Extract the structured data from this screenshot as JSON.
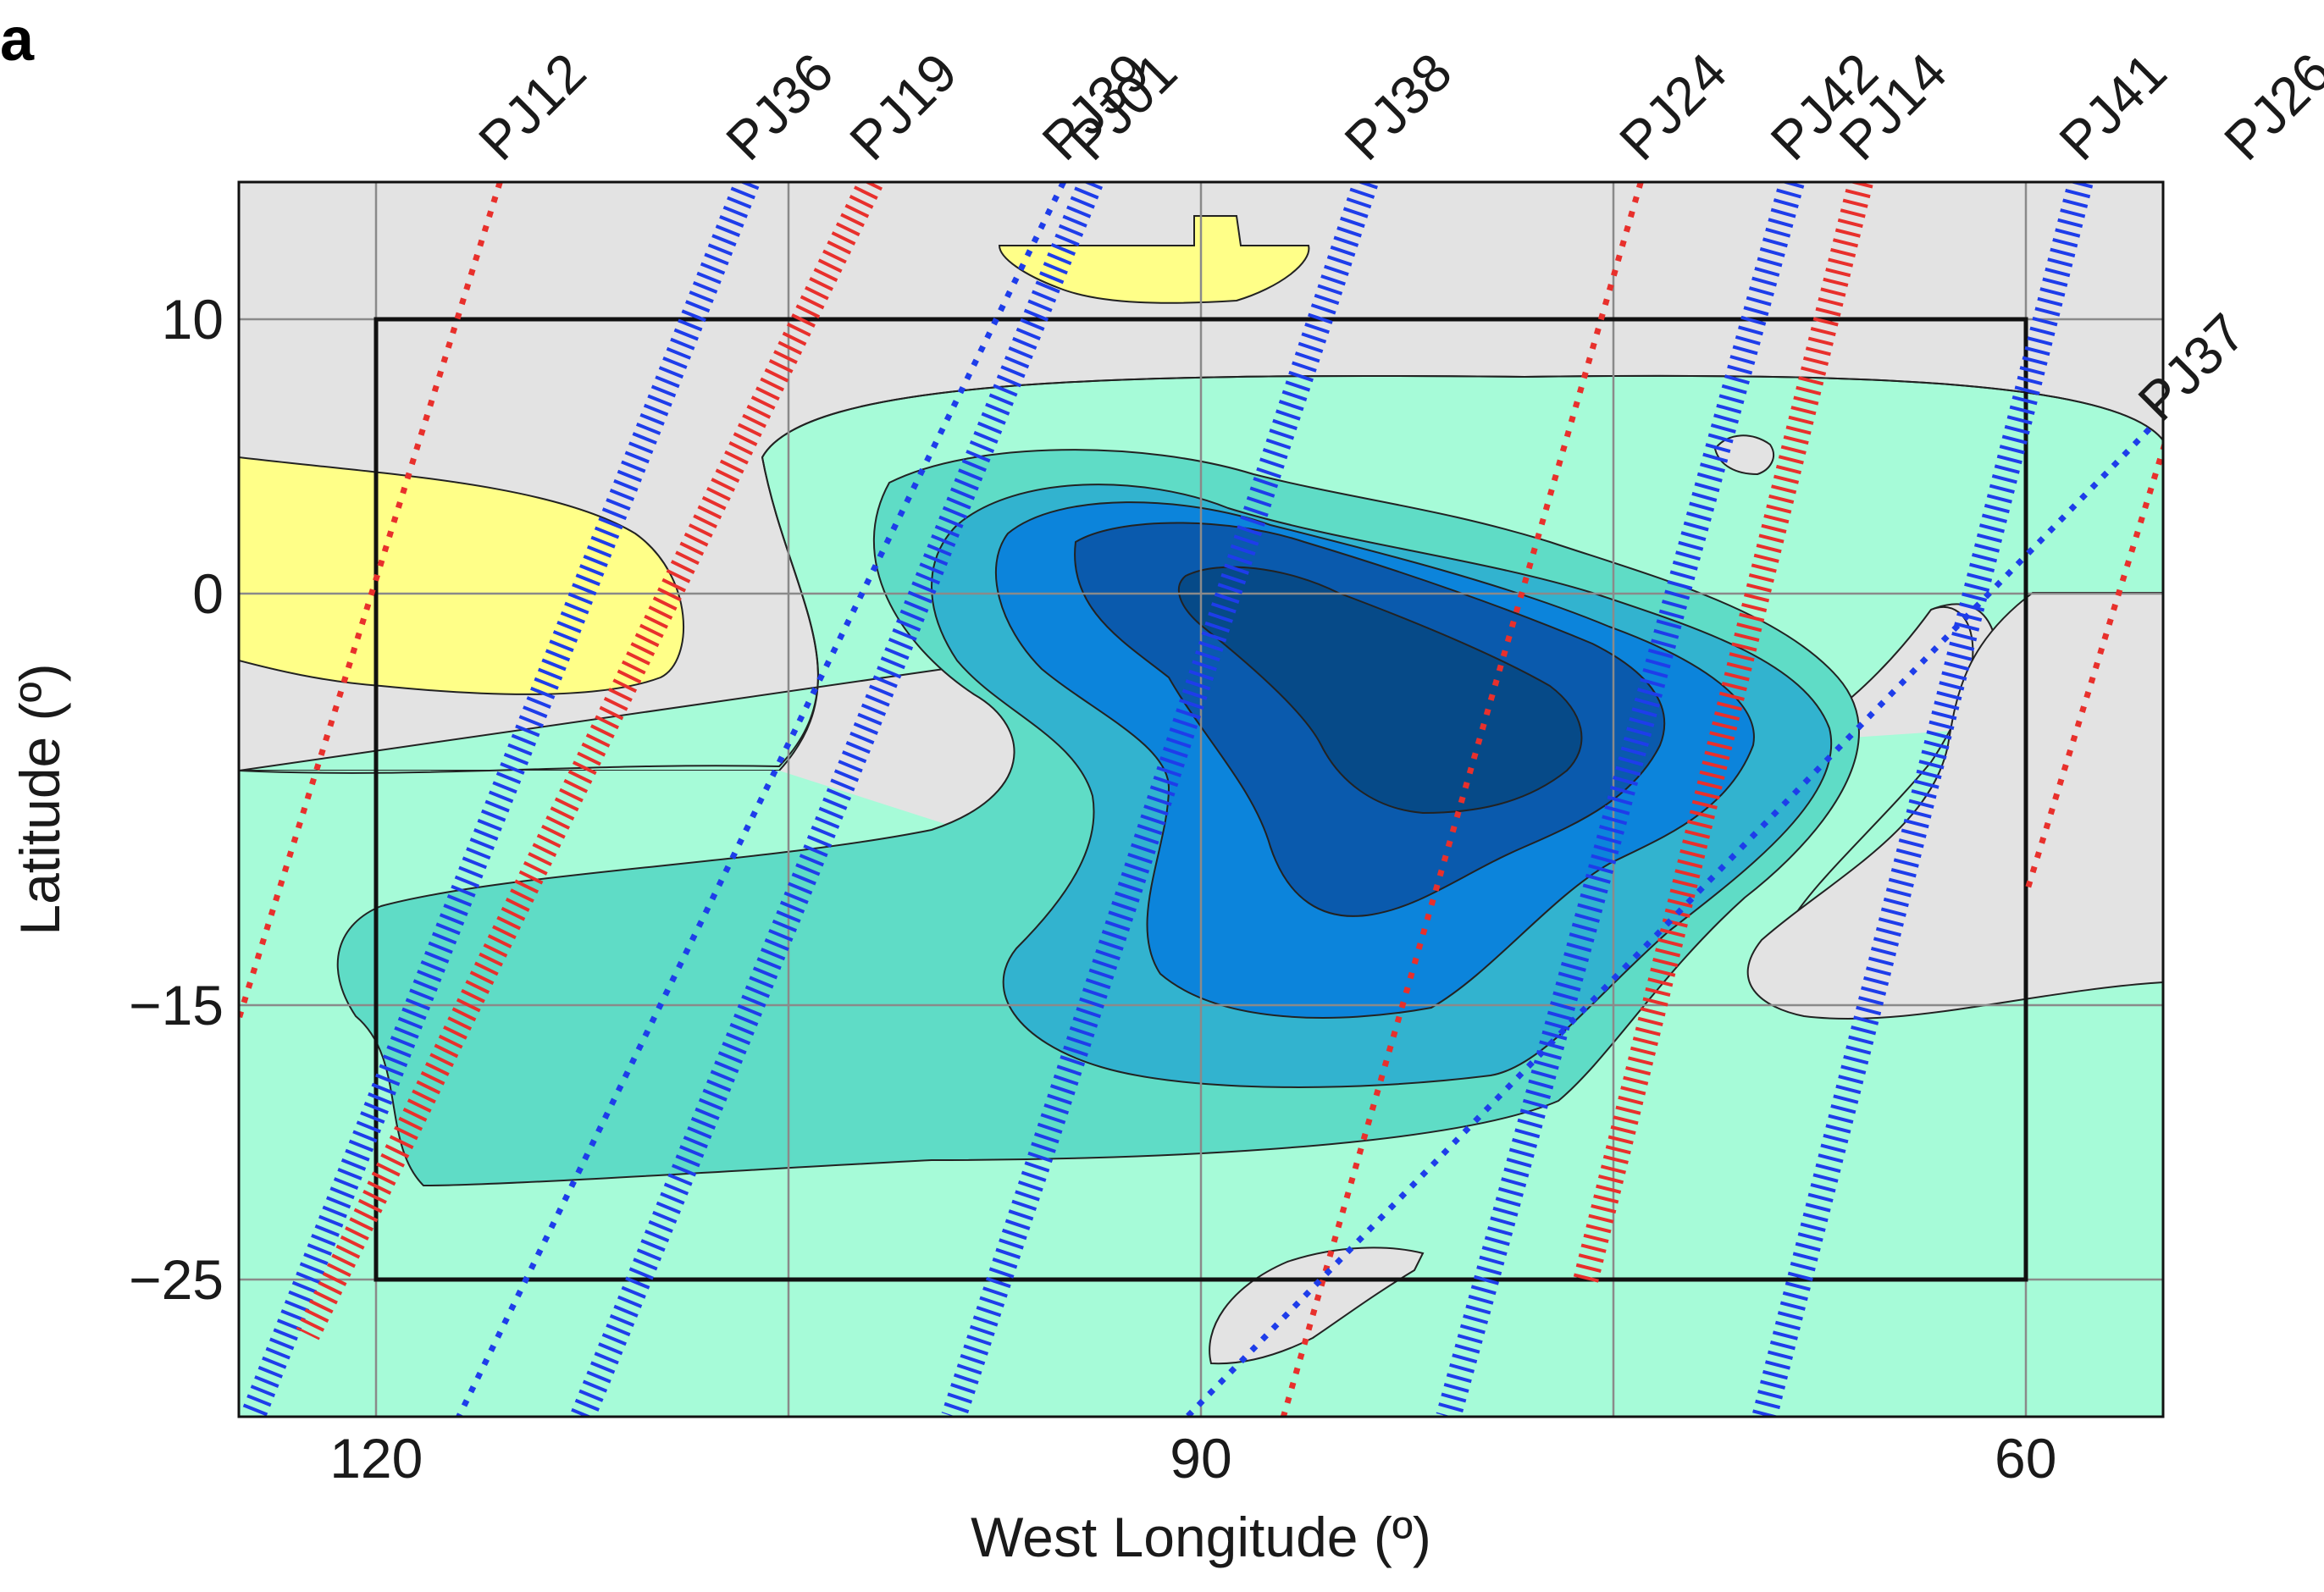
{
  "panel_label": "a",
  "chart_data": {
    "type": "contour-map",
    "xlabel": "West Longitude (º)",
    "ylabel": "Latitude (º)",
    "xlim": [
      125,
      55
    ],
    "ylim": [
      -30,
      15
    ],
    "x_ticks": [
      120,
      90,
      60
    ],
    "y_ticks": [
      10,
      0,
      -15,
      -25
    ],
    "grid": true,
    "region_box": {
      "lon": [
        120,
        60
      ],
      "lat": [
        10,
        -25
      ]
    },
    "colors": {
      "background": "#e3e3e3",
      "positive": "#ffff88",
      "level1": "#a6fbd8",
      "level2": "#5fdcc6",
      "level3": "#32b3cf",
      "level4": "#0c84db",
      "level5": "#0a5aad",
      "level6": "#064a88",
      "perijove_red": "#e8302c",
      "perijove_blue": "#1e3dea"
    },
    "perijoves": [
      {
        "name": "PJ12",
        "color": "red",
        "style": "dot",
        "start": [
          115.5,
          15
        ],
        "end": [
          125,
          -15.5
        ]
      },
      {
        "name": "PJ36",
        "color": "blue",
        "style": "hatch",
        "start": [
          106.5,
          15
        ],
        "end": [
          124.5,
          -30
        ]
      },
      {
        "name": "PJ19",
        "color": "red",
        "style": "hatch",
        "start": [
          102,
          15
        ],
        "end": [
          122.5,
          -27
        ]
      },
      {
        "name": "PJ39",
        "color": "blue",
        "style": "dot",
        "start": [
          95,
          15
        ],
        "end": [
          117,
          -30
        ]
      },
      {
        "name": "PJ01",
        "color": "blue",
        "style": "hatch",
        "start": [
          94,
          15
        ],
        "end": [
          112.5,
          -30
        ]
      },
      {
        "name": "PJ38",
        "color": "blue",
        "style": "hatch",
        "start": [
          84,
          15
        ],
        "end": [
          99,
          -30
        ]
      },
      {
        "name": "PJ24",
        "color": "red",
        "style": "dot",
        "start": [
          74,
          15
        ],
        "end": [
          87,
          -30
        ]
      },
      {
        "name": "PJ42",
        "color": "blue",
        "style": "hatch",
        "start": [
          68.5,
          15
        ],
        "end": [
          81,
          -30
        ]
      },
      {
        "name": "PJ14",
        "color": "red",
        "style": "hatch",
        "start": [
          66,
          15
        ],
        "end": [
          76,
          -25
        ]
      },
      {
        "name": "PJ41",
        "color": "blue",
        "style": "hatch",
        "start": [
          58,
          15
        ],
        "end": [
          69.5,
          -30
        ]
      },
      {
        "name": "PJ26",
        "color": "red",
        "style": "dot",
        "start": [
          52,
          15
        ],
        "end": [
          60,
          -11
        ]
      },
      {
        "name": "PJ37",
        "color": "blue",
        "style": "dot",
        "start": [
          55.5,
          6
        ],
        "end": [
          90.5,
          -30
        ]
      }
    ]
  }
}
